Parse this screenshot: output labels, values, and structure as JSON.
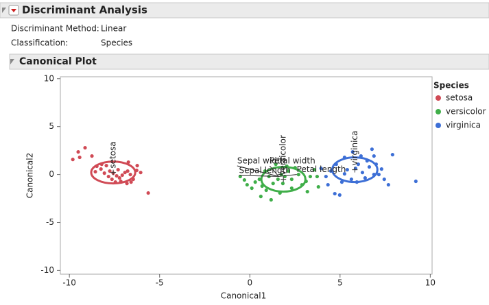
{
  "header": {
    "title": "Discriminant Analysis"
  },
  "info": [
    [
      "Discriminant Method:",
      "Linear"
    ],
    [
      "Classification:",
      "Species"
    ]
  ],
  "section": {
    "title": "Canonical Plot"
  },
  "chart_data": {
    "type": "scatter",
    "x_label": "Canonical1",
    "y_label": "Canonical2",
    "legend_title": "Species",
    "xlim": [
      -10.5,
      10.1
    ],
    "ylim": [
      -10.4,
      10.2
    ],
    "xticks": [
      -10,
      -5,
      0,
      5,
      10
    ],
    "yticks": [
      -10,
      -5,
      0,
      5,
      10
    ],
    "series": [
      {
        "name": "setosa",
        "color": "#d04a55",
        "x": [
          -9.81,
          -9.43,
          -9.13,
          -9.51,
          -8.75,
          -8.48,
          -8.21,
          -7.95,
          -8.25,
          -8.06,
          -7.76,
          -7.57,
          -7.38,
          -7.22,
          -7.07,
          -6.92,
          -6.77,
          -6.62,
          -6.46,
          -6.27,
          -6.05,
          -6.24,
          -6.73,
          -7.3,
          -7.64,
          -7.45,
          -7.15,
          -6.81,
          -6.58,
          -5.63,
          -8.56,
          -7.83
        ],
        "values": [
          1.57,
          1.79,
          2.79,
          2.36,
          1.93,
          0.86,
          1.07,
          0.93,
          0.57,
          0.14,
          0.36,
          0.14,
          -0.14,
          -0.36,
          -0.07,
          0.21,
          0.36,
          0.0,
          -0.5,
          0.43,
          0.21,
          0.93,
          1.29,
          0.5,
          -0.5,
          -0.79,
          -0.71,
          -0.93,
          -0.79,
          -1.93,
          0.29,
          -0.21
        ],
        "ellipse": {
          "center": [
            -7.57,
            0.21
          ],
          "radii": [
            1.22,
            1.14
          ]
        }
      },
      {
        "name": "versicolor",
        "color": "#3fae49",
        "x": [
          -0.53,
          -0.3,
          -0.15,
          0.11,
          0.3,
          0.53,
          0.68,
          0.91,
          1.18,
          0.61,
          1.29,
          1.56,
          1.75,
          1.94,
          2.13,
          2.32,
          2.51,
          2.7,
          2.89,
          3.12,
          3.35,
          3.57,
          3.73,
          3.8,
          2.32,
          1.67,
          1.06,
          0.84,
          1.44,
          2.05,
          3.19,
          1.83
        ],
        "values": [
          -0.21,
          -0.57,
          -1.07,
          -1.43,
          -0.79,
          -0.5,
          -1.21,
          -1.64,
          -2.64,
          -2.29,
          -0.93,
          -0.5,
          0.0,
          -0.21,
          0.36,
          -0.5,
          0.71,
          0.0,
          -1.07,
          -0.71,
          -0.21,
          0.5,
          -0.21,
          -1.29,
          -1.43,
          -1.93,
          -0.21,
          0.36,
          1.07,
          0.86,
          -1.79,
          -0.93
        ],
        "ellipse": {
          "center": [
            1.86,
            -0.5
          ],
          "radii": [
            1.22,
            1.29
          ]
        }
      },
      {
        "name": "virginica",
        "color": "#3d6fd6",
        "x": [
          3.95,
          4.22,
          4.49,
          4.71,
          4.98,
          5.1,
          5.25,
          5.4,
          5.63,
          5.86,
          6.01,
          6.24,
          6.39,
          6.62,
          6.77,
          6.88,
          7.0,
          7.15,
          7.3,
          7.45,
          7.68,
          7.91,
          9.2,
          5.25,
          5.7,
          6.16,
          6.5,
          4.79,
          4.33,
          5.93,
          6.88
        ],
        "values": [
          0.64,
          -0.21,
          0.36,
          -2.0,
          -2.14,
          -0.79,
          0.07,
          0.5,
          -0.5,
          0.64,
          1.07,
          0.21,
          -0.36,
          0.79,
          2.64,
          1.93,
          1.07,
          0.0,
          0.57,
          -0.5,
          -1.07,
          2.07,
          -0.71,
          1.79,
          2.36,
          1.93,
          1.43,
          1.07,
          -1.07,
          -0.79,
          0.0
        ],
        "ellipse": {
          "center": [
            5.82,
            0.5
          ],
          "radii": [
            1.25,
            1.29
          ]
        }
      }
    ],
    "ray_origin": [
      1.6,
      -0.2
    ],
    "rays": [
      {
        "label": "Sepal width",
        "end": [
          -0.7,
          0.9
        ]
      },
      {
        "label": "Sepal length",
        "end": [
          -0.6,
          -0.1
        ]
      },
      {
        "label": "Petal width",
        "end": [
          1.1,
          0.9
        ]
      },
      {
        "label": "Petal length",
        "end": [
          2.6,
          0.0
        ]
      }
    ]
  }
}
